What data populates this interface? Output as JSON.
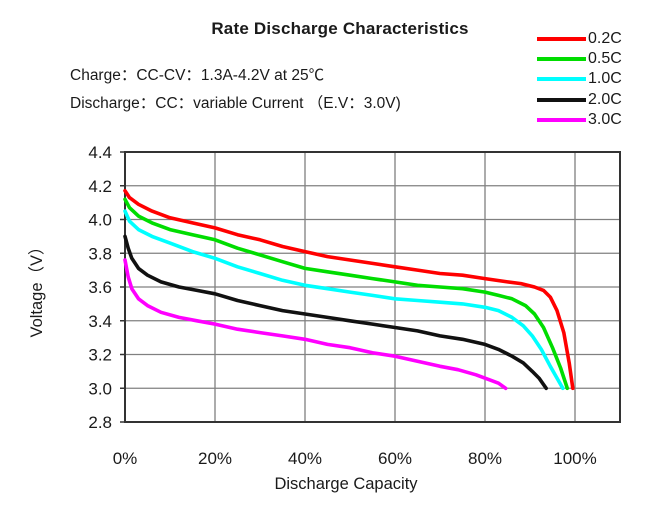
{
  "conditions": {
    "charge": "Charge：CC-CV：1.3A-4.2V at 25℃",
    "discharge": "Discharge：CC：variable Current （E.V：3.0V)"
  },
  "colors": {
    "background": "#ffffff",
    "gridline": "#808080",
    "plot_border": "#333333",
    "text": "#1a1a1a"
  },
  "chart_data": {
    "type": "line",
    "title": "Rate Discharge Characteristics",
    "xlabel": "Discharge Capacity",
    "ylabel": "Voltage（V）",
    "xlim": [
      0,
      110
    ],
    "ylim": [
      2.8,
      4.4
    ],
    "grid": true,
    "legend_position": "top-right",
    "x_tick_values": [
      0,
      20,
      40,
      60,
      80,
      100
    ],
    "x_tick_labels": [
      "0%",
      "20%",
      "40%",
      "60%",
      "80%",
      "100%"
    ],
    "y_tick_values": [
      2.8,
      3.0,
      3.2,
      3.4,
      3.6,
      3.8,
      4.0,
      4.2,
      4.4
    ],
    "y_tick_labels": [
      "2.8",
      "3.0",
      "3.2",
      "3.4",
      "3.6",
      "3.8",
      "4.0",
      "4.2",
      "4.4"
    ],
    "series": [
      {
        "name": "0.2C",
        "color": "#FF0000",
        "points": [
          [
            0,
            4.17
          ],
          [
            1,
            4.13
          ],
          [
            3,
            4.09
          ],
          [
            6,
            4.05
          ],
          [
            10,
            4.01
          ],
          [
            15,
            3.98
          ],
          [
            20,
            3.95
          ],
          [
            25,
            3.91
          ],
          [
            30,
            3.88
          ],
          [
            35,
            3.84
          ],
          [
            40,
            3.81
          ],
          [
            45,
            3.78
          ],
          [
            50,
            3.76
          ],
          [
            55,
            3.74
          ],
          [
            60,
            3.72
          ],
          [
            65,
            3.7
          ],
          [
            70,
            3.68
          ],
          [
            75,
            3.67
          ],
          [
            80,
            3.65
          ],
          [
            85,
            3.63
          ],
          [
            88,
            3.62
          ],
          [
            91,
            3.6
          ],
          [
            93,
            3.58
          ],
          [
            94.5,
            3.54
          ],
          [
            96,
            3.46
          ],
          [
            97.5,
            3.33
          ],
          [
            98.7,
            3.15
          ],
          [
            99.5,
            3.0
          ]
        ]
      },
      {
        "name": "0.5C",
        "color": "#00DD00",
        "points": [
          [
            0,
            4.12
          ],
          [
            1,
            4.07
          ],
          [
            3,
            4.02
          ],
          [
            6,
            3.98
          ],
          [
            10,
            3.94
          ],
          [
            15,
            3.91
          ],
          [
            20,
            3.88
          ],
          [
            25,
            3.83
          ],
          [
            30,
            3.79
          ],
          [
            35,
            3.75
          ],
          [
            40,
            3.71
          ],
          [
            45,
            3.69
          ],
          [
            50,
            3.67
          ],
          [
            55,
            3.65
          ],
          [
            60,
            3.63
          ],
          [
            65,
            3.61
          ],
          [
            70,
            3.6
          ],
          [
            75,
            3.59
          ],
          [
            80,
            3.57
          ],
          [
            83,
            3.55
          ],
          [
            86,
            3.53
          ],
          [
            89,
            3.49
          ],
          [
            91,
            3.44
          ],
          [
            93,
            3.36
          ],
          [
            95,
            3.24
          ],
          [
            96.8,
            3.12
          ],
          [
            98.3,
            3.0
          ]
        ]
      },
      {
        "name": "1.0C",
        "color": "#00FFFF",
        "points": [
          [
            0,
            4.05
          ],
          [
            1,
            3.99
          ],
          [
            3,
            3.94
          ],
          [
            6,
            3.9
          ],
          [
            10,
            3.86
          ],
          [
            15,
            3.81
          ],
          [
            20,
            3.77
          ],
          [
            25,
            3.72
          ],
          [
            30,
            3.68
          ],
          [
            35,
            3.64
          ],
          [
            40,
            3.61
          ],
          [
            45,
            3.59
          ],
          [
            50,
            3.57
          ],
          [
            55,
            3.55
          ],
          [
            60,
            3.53
          ],
          [
            65,
            3.52
          ],
          [
            70,
            3.51
          ],
          [
            75,
            3.5
          ],
          [
            80,
            3.48
          ],
          [
            83,
            3.46
          ],
          [
            86,
            3.42
          ],
          [
            88.5,
            3.37
          ],
          [
            90.5,
            3.31
          ],
          [
            92.5,
            3.23
          ],
          [
            94.5,
            3.13
          ],
          [
            96,
            3.06
          ],
          [
            97.3,
            3.0
          ]
        ]
      },
      {
        "name": "2.0C",
        "color": "#111111",
        "points": [
          [
            0,
            3.9
          ],
          [
            0.7,
            3.83
          ],
          [
            1.5,
            3.77
          ],
          [
            3,
            3.71
          ],
          [
            5,
            3.67
          ],
          [
            8,
            3.63
          ],
          [
            12,
            3.6
          ],
          [
            16,
            3.58
          ],
          [
            20,
            3.56
          ],
          [
            25,
            3.52
          ],
          [
            30,
            3.49
          ],
          [
            35,
            3.46
          ],
          [
            40,
            3.44
          ],
          [
            45,
            3.42
          ],
          [
            50,
            3.4
          ],
          [
            55,
            3.38
          ],
          [
            60,
            3.36
          ],
          [
            65,
            3.34
          ],
          [
            70,
            3.31
          ],
          [
            75,
            3.29
          ],
          [
            80,
            3.26
          ],
          [
            83,
            3.23
          ],
          [
            86,
            3.19
          ],
          [
            88.5,
            3.15
          ],
          [
            90.5,
            3.1
          ],
          [
            92,
            3.06
          ],
          [
            93.6,
            3.0
          ]
        ]
      },
      {
        "name": "3.0C",
        "color": "#FF00FF",
        "points": [
          [
            0,
            3.76
          ],
          [
            0.7,
            3.66
          ],
          [
            1.5,
            3.59
          ],
          [
            3,
            3.53
          ],
          [
            5,
            3.49
          ],
          [
            8,
            3.45
          ],
          [
            12,
            3.42
          ],
          [
            16,
            3.4
          ],
          [
            20,
            3.38
          ],
          [
            25,
            3.35
          ],
          [
            30,
            3.33
          ],
          [
            35,
            3.31
          ],
          [
            40,
            3.29
          ],
          [
            45,
            3.26
          ],
          [
            50,
            3.24
          ],
          [
            55,
            3.21
          ],
          [
            60,
            3.19
          ],
          [
            65,
            3.16
          ],
          [
            70,
            3.13
          ],
          [
            74,
            3.11
          ],
          [
            78,
            3.08
          ],
          [
            81,
            3.05
          ],
          [
            83,
            3.03
          ],
          [
            84.6,
            3.0
          ]
        ]
      }
    ]
  }
}
